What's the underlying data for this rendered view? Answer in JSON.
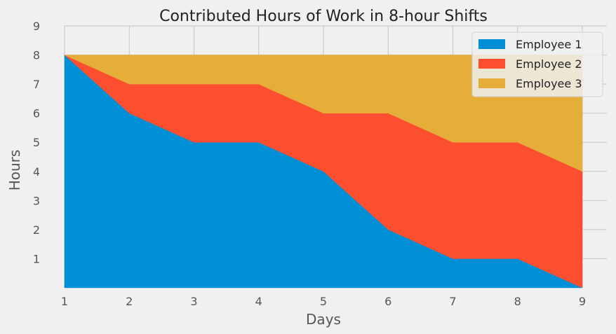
{
  "chart_data": {
    "type": "area",
    "stacked": true,
    "title": "Contributed Hours of Work in 8-hour Shifts",
    "xlabel": "Days",
    "ylabel": "Hours",
    "x": [
      1,
      2,
      3,
      4,
      5,
      6,
      7,
      8,
      9
    ],
    "xlim": [
      1,
      9
    ],
    "ylim": [
      0,
      9
    ],
    "yticks": [
      1,
      2,
      3,
      4,
      5,
      6,
      7,
      8,
      9
    ],
    "grid": true,
    "legend_position": "top-right",
    "series": [
      {
        "name": "Employee 1",
        "values": [
          8,
          6,
          5,
          5,
          4,
          2,
          1,
          1,
          0
        ],
        "color": "#008fd5"
      },
      {
        "name": "Employee 2",
        "values": [
          0,
          1,
          2,
          2,
          2,
          4,
          4,
          4,
          4
        ],
        "color": "#fc4f30"
      },
      {
        "name": "Employee 3",
        "values": [
          0,
          1,
          1,
          1,
          2,
          2,
          3,
          3,
          4
        ],
        "color": "#e5ae38"
      }
    ]
  }
}
